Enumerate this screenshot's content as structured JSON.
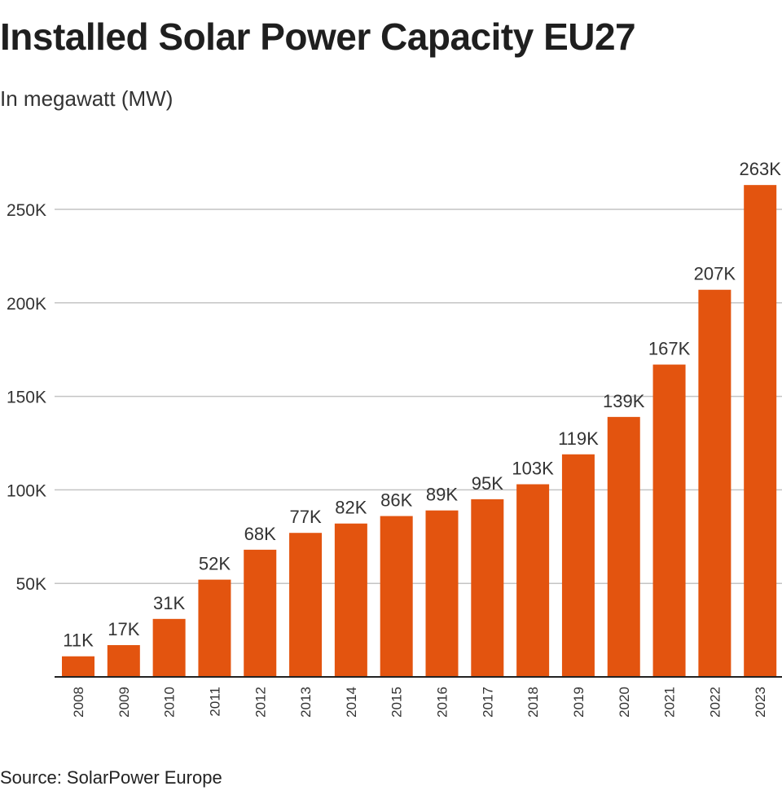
{
  "chart_data": {
    "type": "bar",
    "title": "Installed Solar Power Capacity EU27",
    "subtitle": "In megawatt (MW)",
    "source": "Source: SolarPower Europe",
    "xlabel": "",
    "ylabel": "",
    "ylim": [
      0,
      280000
    ],
    "yticks": [
      50000,
      100000,
      150000,
      200000,
      250000
    ],
    "ytick_labels": [
      "50K",
      "100K",
      "150K",
      "200K",
      "250K"
    ],
    "grid": true,
    "categories": [
      "2008",
      "2009",
      "2010",
      "2011",
      "2012",
      "2013",
      "2014",
      "2015",
      "2016",
      "2017",
      "2018",
      "2019",
      "2020",
      "2021",
      "2022",
      "2023"
    ],
    "values": [
      11000,
      17000,
      31000,
      52000,
      68000,
      77000,
      82000,
      86000,
      89000,
      95000,
      103000,
      119000,
      139000,
      167000,
      207000,
      263000
    ],
    "data_labels": [
      "11K",
      "17K",
      "31K",
      "52K",
      "68K",
      "77K",
      "82K",
      "86K",
      "89K",
      "95K",
      "103K",
      "119K",
      "139K",
      "167K",
      "207K",
      "263K"
    ],
    "bar_color": "#e3540f"
  }
}
